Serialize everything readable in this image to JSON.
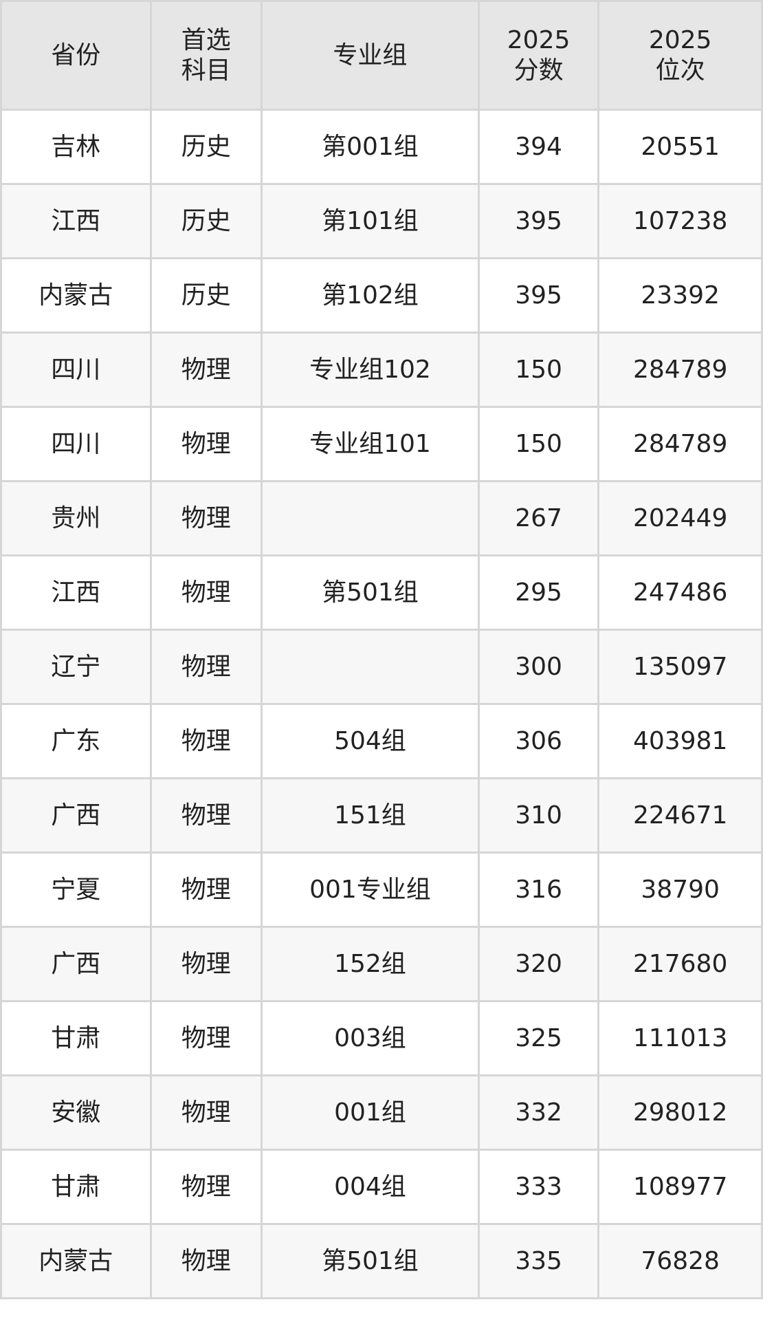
{
  "headers": [
    [
      "省份"
    ],
    [
      "首选",
      "科目"
    ],
    [
      "专业组"
    ],
    [
      "2025",
      "分数"
    ],
    [
      "2025",
      "位次"
    ]
  ],
  "rows": [
    [
      "吉林",
      "历史",
      "第001组",
      "394",
      "20551"
    ],
    [
      "江西",
      "历史",
      "第101组",
      "395",
      "107238"
    ],
    [
      "内蒙古",
      "历史",
      "第102组",
      "395",
      "23392"
    ],
    [
      "四川",
      "物理",
      "专业组102",
      "150",
      "284789"
    ],
    [
      "四川",
      "物理",
      "专业组101",
      "150",
      "284789"
    ],
    [
      "贵州",
      "物理",
      "",
      "267",
      "202449"
    ],
    [
      "江西",
      "物理",
      "第501组",
      "295",
      "247486"
    ],
    [
      "辽宁",
      "物理",
      "",
      "300",
      "135097"
    ],
    [
      "广东",
      "物理",
      "504组",
      "306",
      "403981"
    ],
    [
      "广西",
      "物理",
      "151组",
      "310",
      "224671"
    ],
    [
      "宁夏",
      "物理",
      "001专业组",
      "316",
      "38790"
    ],
    [
      "广西",
      "物理",
      "152组",
      "320",
      "217680"
    ],
    [
      "甘肃",
      "物理",
      "003组",
      "325",
      "111013"
    ],
    [
      "安徽",
      "物理",
      "001组",
      "332",
      "298012"
    ],
    [
      "甘肃",
      "物理",
      "004组",
      "333",
      "108977"
    ],
    [
      "内蒙古",
      "物理",
      "第501组",
      "335",
      "76828"
    ]
  ]
}
